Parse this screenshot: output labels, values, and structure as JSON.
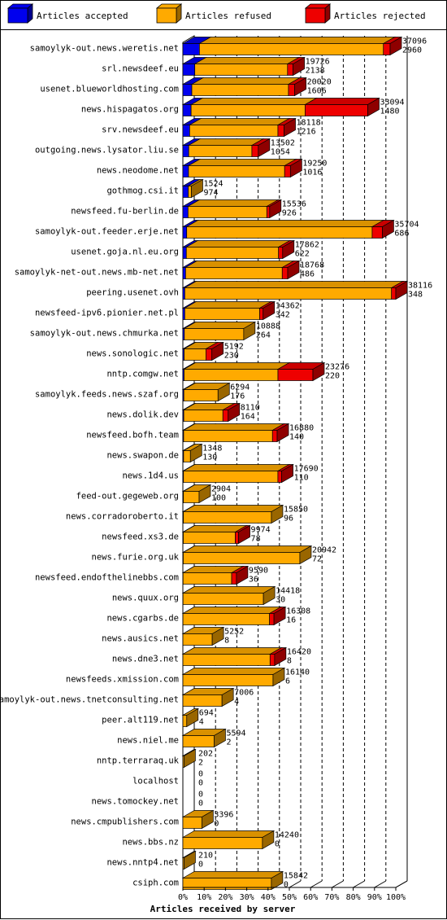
{
  "chart_data": {
    "type": "bar",
    "subtype": "horizontal-stacked-3d",
    "xlabel": "Articles received by server",
    "x_ticks": [
      "0%",
      "10%",
      "20%",
      "30%",
      "40%",
      "50%",
      "60%",
      "70%",
      "80%",
      "90%",
      "100%"
    ],
    "xlim": [
      0,
      100
    ],
    "legend": {
      "placement": "top",
      "entries": [
        {
          "label": "Articles accepted",
          "color": "#0000ee"
        },
        {
          "label": "Articles refused",
          "color": "#ffaa00"
        },
        {
          "label": "Articles rejected",
          "color": "#ee0000"
        }
      ]
    },
    "rows": [
      {
        "server": "samoylyk-out.news.weretis.net",
        "total": "37096",
        "second": "2960",
        "accepted": 2960,
        "refused": 32940,
        "rejected": 1196
      },
      {
        "server": "srl.newsdeef.eu",
        "total": "19726",
        "second": "2138",
        "accepted": 2138,
        "refused": 16600,
        "rejected": 988
      },
      {
        "server": "usenet.blueworldhosting.com",
        "total": "20020",
        "second": "1606",
        "accepted": 1606,
        "refused": 17300,
        "rejected": 1114
      },
      {
        "server": "news.hispagatos.org",
        "total": "33094",
        "second": "1480",
        "accepted": 1480,
        "refused": 20400,
        "rejected": 11214
      },
      {
        "server": "srv.newsdeef.eu",
        "total": "18118",
        "second": "1216",
        "accepted": 1216,
        "refused": 15800,
        "rejected": 1102
      },
      {
        "server": "outgoing.news.lysator.liu.se",
        "total": "13502",
        "second": "1054",
        "accepted": 1054,
        "refused": 11300,
        "rejected": 1148
      },
      {
        "server": "news.neodome.net",
        "total": "19250",
        "second": "1016",
        "accepted": 1016,
        "refused": 17200,
        "rejected": 1034
      },
      {
        "server": "gothmog.csi.it",
        "total": "1524",
        "second": "974",
        "accepted": 974,
        "refused": 550,
        "rejected": 0
      },
      {
        "server": "newsfeed.fu-berlin.de",
        "total": "15536",
        "second": "926",
        "accepted": 926,
        "refused": 14100,
        "rejected": 510
      },
      {
        "server": "samoylyk-out.feeder.erje.net",
        "total": "35704",
        "second": "686",
        "accepted": 686,
        "refused": 33200,
        "rejected": 1818
      },
      {
        "server": "usenet.goja.nl.eu.org",
        "total": "17862",
        "second": "622",
        "accepted": 622,
        "refused": 16500,
        "rejected": 740
      },
      {
        "server": "samoylyk-net-out.news.mb-net.net",
        "total": "18768",
        "second": "486",
        "accepted": 486,
        "refused": 17300,
        "rejected": 982
      },
      {
        "server": "peering.usenet.ovh",
        "total": "38116",
        "second": "348",
        "accepted": 348,
        "refused": 37000,
        "rejected": 768
      },
      {
        "server": "newsfeed-ipv6.pionier.net.pl",
        "total": "14362",
        "second": "342",
        "accepted": 342,
        "refused": 13400,
        "rejected": 620
      },
      {
        "server": "samoylyk-out.news.chmurka.net",
        "total": "10888",
        "second": "264",
        "accepted": 264,
        "refused": 10624,
        "rejected": 0
      },
      {
        "server": "news.sonologic.net",
        "total": "5192",
        "second": "230",
        "accepted": 230,
        "refused": 3900,
        "rejected": 1062
      },
      {
        "server": "nntp.comgw.net",
        "total": "23276",
        "second": "220",
        "accepted": 220,
        "refused": 16800,
        "rejected": 6256
      },
      {
        "server": "samoylyk.feeds.news.szaf.org",
        "total": "6294",
        "second": "176",
        "accepted": 176,
        "refused": 6118,
        "rejected": 0
      },
      {
        "server": "news.dolik.dev",
        "total": "8110",
        "second": "164",
        "accepted": 164,
        "refused": 7000,
        "rejected": 946
      },
      {
        "server": "newsfeed.bofh.team",
        "total": "16880",
        "second": "140",
        "accepted": 140,
        "refused": 15900,
        "rejected": 840
      },
      {
        "server": "news.swapon.de",
        "total": "1348",
        "second": "130",
        "accepted": 130,
        "refused": 1218,
        "rejected": 0
      },
      {
        "server": "news.1d4.us",
        "total": "17690",
        "second": "110",
        "accepted": 110,
        "refused": 16900,
        "rejected": 680
      },
      {
        "server": "feed-out.gegeweb.org",
        "total": "2904",
        "second": "100",
        "accepted": 100,
        "refused": 2804,
        "rejected": 0
      },
      {
        "server": "news.corradoroberto.it",
        "total": "15850",
        "second": "96",
        "accepted": 96,
        "refused": 15754,
        "rejected": 0
      },
      {
        "server": "newsfeed.xs3.de",
        "total": "9974",
        "second": "78",
        "accepted": 78,
        "refused": 9300,
        "rejected": 596
      },
      {
        "server": "news.furie.org.uk",
        "total": "20942",
        "second": "72",
        "accepted": 72,
        "refused": 20870,
        "rejected": 0
      },
      {
        "server": "newsfeed.endofthelinebbs.com",
        "total": "9590",
        "second": "36",
        "accepted": 36,
        "refused": 8700,
        "rejected": 854
      },
      {
        "server": "news.quux.org",
        "total": "14418",
        "second": "30",
        "accepted": 30,
        "refused": 14388,
        "rejected": 0
      },
      {
        "server": "news.cgarbs.de",
        "total": "16308",
        "second": "16",
        "accepted": 16,
        "refused": 15500,
        "rejected": 792
      },
      {
        "server": "news.ausics.net",
        "total": "5252",
        "second": "8",
        "accepted": 8,
        "refused": 5244,
        "rejected": 0
      },
      {
        "server": "news.dne3.net",
        "total": "16420",
        "second": "8",
        "accepted": 8,
        "refused": 15600,
        "rejected": 812
      },
      {
        "server": "newsfeeds.xmission.com",
        "total": "16140",
        "second": "6",
        "accepted": 6,
        "refused": 16134,
        "rejected": 0
      },
      {
        "server": "samoylyk-out.news.tnetconsulting.net",
        "total": "7006",
        "second": "4",
        "accepted": 4,
        "refused": 7002,
        "rejected": 0
      },
      {
        "server": "peer.alt119.net",
        "total": "694",
        "second": "4",
        "accepted": 4,
        "refused": 690,
        "rejected": 0
      },
      {
        "server": "news.niel.me",
        "total": "5594",
        "second": "2",
        "accepted": 2,
        "refused": 5592,
        "rejected": 0
      },
      {
        "server": "nntp.terraraq.uk",
        "total": "202",
        "second": "2",
        "accepted": 2,
        "refused": 200,
        "rejected": 0
      },
      {
        "server": "localhost",
        "total": "0",
        "second": "0",
        "accepted": 0,
        "refused": 0,
        "rejected": 0
      },
      {
        "server": "news.tomockey.net",
        "total": "0",
        "second": "0",
        "accepted": 0,
        "refused": 0,
        "rejected": 0
      },
      {
        "server": "news.cmpublishers.com",
        "total": "3396",
        "second": "0",
        "accepted": 0,
        "refused": 3396,
        "rejected": 0
      },
      {
        "server": "news.bbs.nz",
        "total": "14240",
        "second": "0",
        "accepted": 0,
        "refused": 14240,
        "rejected": 0
      },
      {
        "server": "news.nntp4.net",
        "total": "210",
        "second": "0",
        "accepted": 0,
        "refused": 210,
        "rejected": 0
      },
      {
        "server": "csiph.com",
        "total": "15842",
        "second": "0",
        "accepted": 0,
        "refused": 15842,
        "rejected": 0
      }
    ]
  }
}
